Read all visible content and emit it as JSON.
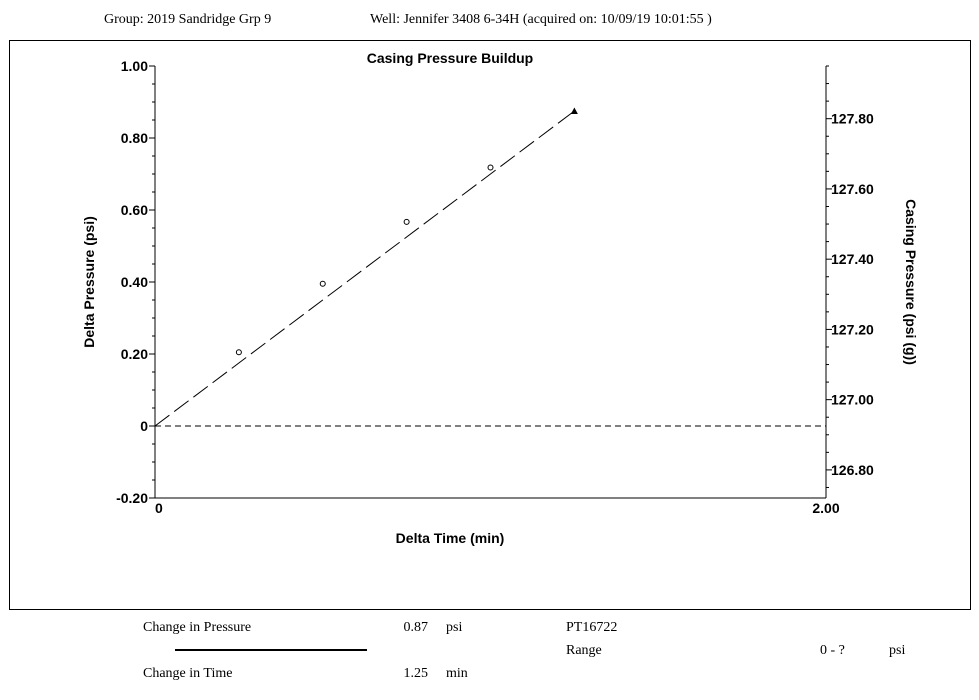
{
  "header": {
    "group": "Group: 2019 Sandridge Grp 9",
    "well": "Well: Jennifer 3408 6-34H (acquired on: 10/09/19 10:01:55 )"
  },
  "chart_data": {
    "type": "scatter",
    "title": "Casing Pressure Buildup",
    "xlabel": "Delta Time (min)",
    "ylabel": "Delta Pressure (psi)",
    "y2label": "Casing Pressure (psi (g))",
    "xlim": [
      0,
      2.0
    ],
    "ylim": [
      -0.2,
      1.0
    ],
    "y2lim": [
      126.72,
      127.95
    ],
    "x_tick_labels": [
      {
        "value": 0,
        "label": "0"
      },
      {
        "value": 2.0,
        "label": "2.00"
      }
    ],
    "y_tick_labels": [
      {
        "value": 1.0,
        "label": "1.00"
      },
      {
        "value": 0.8,
        "label": "0.80"
      },
      {
        "value": 0.6,
        "label": "0.60"
      },
      {
        "value": 0.4,
        "label": "0.40"
      },
      {
        "value": 0.2,
        "label": "0.20"
      },
      {
        "value": 0,
        "label": "0"
      },
      {
        "value": -0.2,
        "label": "-0.20"
      }
    ],
    "y2_tick_labels": [
      {
        "value": 127.8,
        "label": "127.80"
      },
      {
        "value": 127.6,
        "label": "127.60"
      },
      {
        "value": 127.4,
        "label": "127.40"
      },
      {
        "value": 127.2,
        "label": "127.20"
      },
      {
        "value": 127.0,
        "label": "127.00"
      },
      {
        "value": 126.8,
        "label": "126.80"
      }
    ],
    "series": [
      {
        "marker": "circle-open",
        "x": [
          0.25,
          0.5,
          0.75,
          1.0
        ],
        "y": [
          0.205,
          0.395,
          0.567,
          0.718
        ]
      },
      {
        "marker": "triangle-filled",
        "x": [
          1.25
        ],
        "y": [
          0.875
        ]
      }
    ],
    "trend_line": {
      "x": [
        0,
        1.25
      ],
      "y": [
        0,
        0.875
      ],
      "style": "long-dash"
    },
    "baseline": {
      "y": 0,
      "style": "dashed"
    },
    "grid": false,
    "legend": "none",
    "colors": {
      "ink": "#000000"
    }
  },
  "footer": {
    "pressure_label": "Change in Pressure",
    "pressure_value": "0.87",
    "pressure_unit": "psi",
    "time_label": "Change in Time",
    "time_value": "1.25",
    "time_unit": "min",
    "sensor_id": "PT16722",
    "range_label": "Range",
    "range_value": "0 - ?",
    "range_unit": "psi"
  }
}
